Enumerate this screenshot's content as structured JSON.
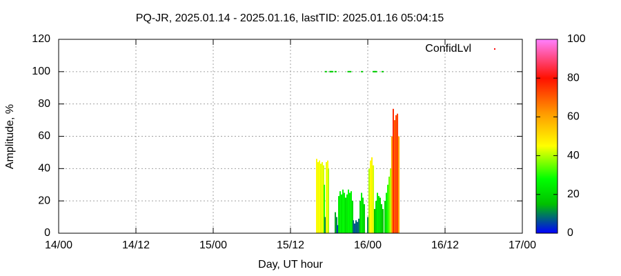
{
  "chart_data": {
    "type": "impulse",
    "title": "PQ-JR, 2025.01.14 - 2025.01.16, lastTID: 2025.01.16 05:04:15",
    "x_label": "Day, UT hour",
    "y_label": "Amplitude, %",
    "xlim": [
      0,
      72
    ],
    "xticks": [
      {
        "value": 0,
        "label": "14/00"
      },
      {
        "value": 12,
        "label": "14/12"
      },
      {
        "value": 24,
        "label": "15/00"
      },
      {
        "value": 36,
        "label": "15/12"
      },
      {
        "value": 48,
        "label": "16/00"
      },
      {
        "value": 60,
        "label": "16/12"
      },
      {
        "value": 72,
        "label": "17/00"
      }
    ],
    "ylim": [
      0,
      120
    ],
    "yticks": [
      0,
      20,
      40,
      60,
      80,
      100,
      120
    ],
    "grid": true,
    "colorbar": {
      "lim": [
        0,
        100
      ],
      "ticks": [
        0,
        20,
        40,
        60,
        80,
        100
      ]
    },
    "palette": [
      {
        "pos": 0,
        "color": "#0000ff"
      },
      {
        "pos": 0.15,
        "color": "#00c000"
      },
      {
        "pos": 0.28,
        "color": "#00ff00"
      },
      {
        "pos": 0.45,
        "color": "#ffff00"
      },
      {
        "pos": 0.62,
        "color": "#ff9900"
      },
      {
        "pos": 0.8,
        "color": "#ff1000"
      },
      {
        "pos": 1,
        "color": "#ff80ff"
      }
    ],
    "x": [
      40.07,
      40.29,
      40.5,
      40.71,
      40.93,
      41.14,
      41.25,
      41.36,
      41.57,
      41.79,
      41.89,
      42.96,
      43.18,
      43.29,
      43.5,
      43.71,
      43.93,
      44.14,
      44.36,
      44.57,
      44.79,
      45.0,
      45.21,
      45.43,
      45.64,
      45.75,
      45.96,
      46.18,
      46.39,
      46.61,
      46.82,
      47.04,
      47.25,
      47.46,
      48.0,
      48.21,
      48.43,
      48.64,
      48.86,
      49.07,
      49.29,
      49.5,
      49.71,
      49.93,
      50.14,
      50.36,
      50.68,
      50.89,
      51.11,
      51.32,
      51.54,
      51.75,
      51.96,
      52.18,
      52.39,
      52.61,
      52.82
    ],
    "values": [
      46,
      44,
      45,
      43,
      44,
      42,
      30,
      10,
      44,
      45,
      40,
      13,
      10,
      5,
      23,
      26,
      24,
      27,
      25,
      22,
      24,
      27,
      25,
      26,
      20,
      8,
      6,
      8,
      7,
      9,
      20,
      25,
      22,
      18,
      10,
      40,
      45,
      47,
      42,
      15,
      20,
      25,
      23,
      22,
      18,
      15,
      20,
      25,
      30,
      35,
      40,
      60,
      77,
      70,
      73,
      74,
      60
    ],
    "series": [
      {
        "name": "ConfidLvl",
        "marker_color": "#00cc00",
        "legend_color": "#ff0000",
        "x": [
          41.5,
          42.2,
          42.3,
          42.5,
          43.0,
          45.0,
          45.3,
          47.1,
          48.9,
          49.1,
          49.3,
          50.3
        ],
        "values": [
          100,
          100,
          100,
          100,
          100,
          100,
          100,
          100,
          100,
          100,
          100,
          100
        ]
      }
    ]
  }
}
